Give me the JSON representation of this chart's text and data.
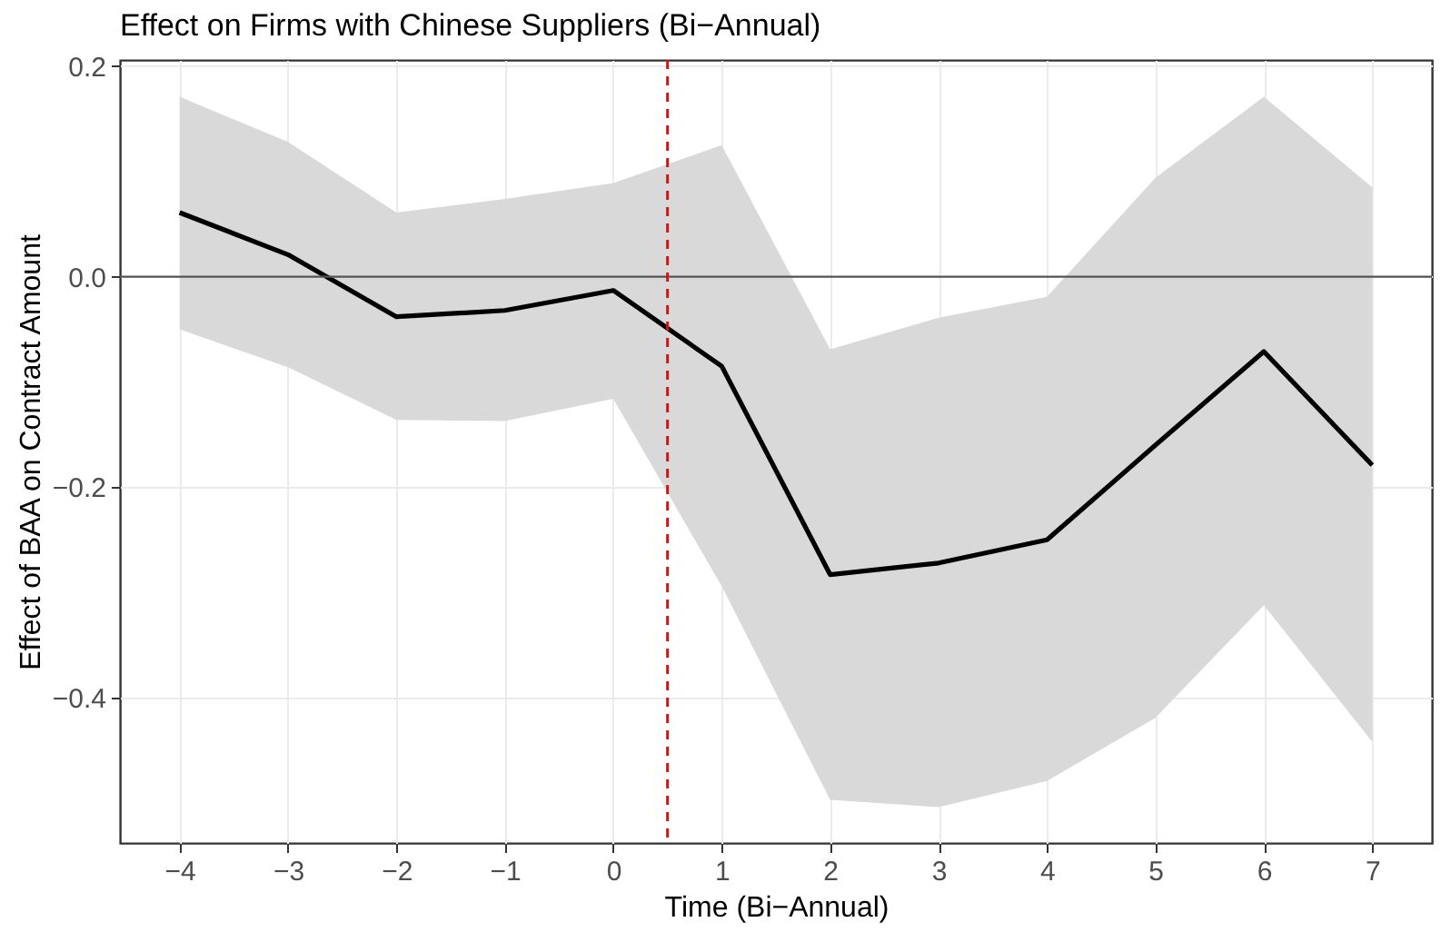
{
  "chart_data": {
    "type": "line",
    "title": "Effect on Firms with Chinese Suppliers (Bi−Annual)",
    "xlabel": "Time (Bi−Annual)",
    "ylabel": "Effect of BAA on Contract Amount",
    "x": [
      -4,
      -3,
      -2,
      -1,
      0,
      1,
      2,
      3,
      4,
      5,
      6,
      7
    ],
    "series": [
      {
        "color": "#000000",
        "values": [
          0.061,
          0.021,
          -0.038,
          -0.032,
          -0.013,
          -0.085,
          -0.283,
          -0.272,
          -0.25,
          -0.16,
          -0.071,
          -0.179
        ],
        "lower": [
          -0.05,
          -0.086,
          -0.136,
          -0.137,
          -0.116,
          -0.294,
          -0.497,
          -0.504,
          -0.479,
          -0.419,
          -0.312,
          -0.442
        ],
        "upper": [
          0.171,
          0.128,
          0.061,
          0.074,
          0.089,
          0.125,
          -0.069,
          -0.039,
          -0.019,
          0.094,
          0.171,
          0.085
        ]
      }
    ],
    "xlim": [
      -4.55,
      7.55
    ],
    "xticks": [
      -4,
      -3,
      -2,
      -1,
      0,
      1,
      2,
      3,
      4,
      5,
      6,
      7
    ],
    "ylim": [
      -0.538,
      0.206
    ],
    "yticks": [
      {
        "value": -0.4,
        "label": "−0.4"
      },
      {
        "value": -0.2,
        "label": "−0.2"
      },
      {
        "value": 0,
        "label": "0.0"
      },
      {
        "value": 0.2,
        "label": "0.2"
      }
    ],
    "ref_lines": [
      {
        "axis": "y",
        "value": 0,
        "color": "#555555",
        "line_style": "solid"
      },
      {
        "axis": "x",
        "value": 0.5,
        "color": "#ff0000",
        "line_style": "dashed"
      }
    ],
    "grid": true,
    "marker": "none",
    "line_style": "solid"
  }
}
